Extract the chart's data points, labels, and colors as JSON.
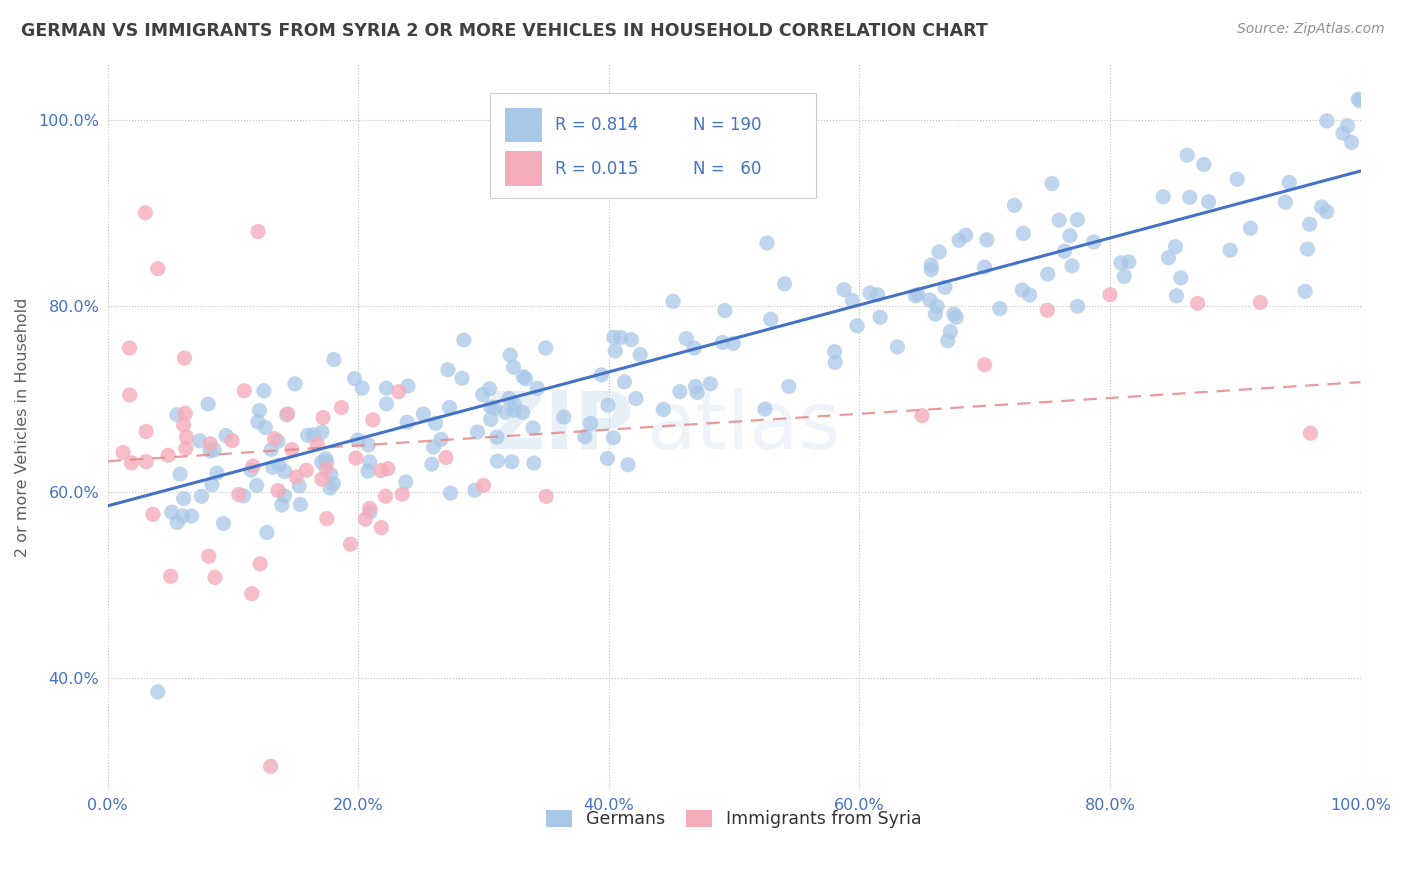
{
  "title": "GERMAN VS IMMIGRANTS FROM SYRIA 2 OR MORE VEHICLES IN HOUSEHOLD CORRELATION CHART",
  "source": "Source: ZipAtlas.com",
  "ylabel": "2 or more Vehicles in Household",
  "xlim": [
    0,
    1
  ],
  "ylim": [
    0.28,
    1.06
  ],
  "x_tick_labels": [
    "0.0%",
    "20.0%",
    "40.0%",
    "60.0%",
    "80.0%",
    "100.0%"
  ],
  "x_tick_positions": [
    0,
    0.2,
    0.4,
    0.6,
    0.8,
    1.0
  ],
  "y_tick_labels": [
    "40.0%",
    "60.0%",
    "80.0%",
    "100.0%"
  ],
  "y_tick_positions": [
    0.4,
    0.6,
    0.8,
    1.0
  ],
  "legend_labels_bottom": [
    "Germans",
    "Immigrants from Syria"
  ],
  "blue_color": "#A8C8E8",
  "pink_color": "#F4ACBB",
  "line_blue": "#4472C4",
  "line_pink": "#E88888",
  "title_color": "#404040",
  "source_color": "#909090",
  "watermark_zip": "ZIP",
  "watermark_atlas": "atlas",
  "background_color": "#FFFFFF",
  "grid_color": "#BBBBBB",
  "axis_label_color": "#606060",
  "tick_color": "#4472C4",
  "legend_text_color": "#4472C4",
  "legend_label_color": "#333333",
  "blue_line_start_y": 0.585,
  "blue_line_end_y": 0.945,
  "pink_line_start_y": 0.633,
  "pink_line_end_y": 0.718
}
